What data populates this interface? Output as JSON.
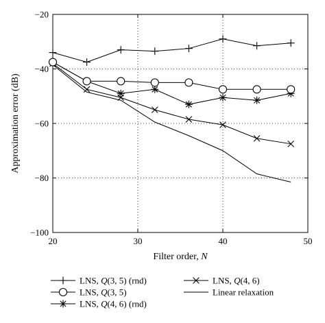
{
  "chart_data": {
    "type": "line",
    "title": "",
    "xlabel": "Filter order, N",
    "ylabel": "Approximation error (dB)",
    "xlim": [
      20,
      50
    ],
    "ylim": [
      -100,
      -20
    ],
    "x_ticks": [
      20,
      30,
      40,
      50
    ],
    "y_ticks": [
      -20,
      -40,
      -60,
      -80,
      -100
    ],
    "grid": true,
    "legend_position": "below",
    "series": [
      {
        "name": "LNS, Q(3, 5) (rnd)",
        "marker": "plus",
        "x": [
          20,
          24,
          28,
          32,
          36,
          40,
          44,
          48
        ],
        "y": [
          -34,
          -37.5,
          -33,
          -33.5,
          -32.5,
          -29,
          -31.5,
          -30.5
        ]
      },
      {
        "name": "LNS, Q(3, 5)",
        "marker": "circle",
        "x": [
          20,
          24,
          28,
          32,
          36,
          40,
          44,
          48
        ],
        "y": [
          -37.5,
          -44.5,
          -44.5,
          -45,
          -45,
          -47.5,
          -47.5,
          -47.5
        ]
      },
      {
        "name": "LNS, Q(4, 6) (rnd)",
        "marker": "star",
        "x": [
          20,
          24,
          28,
          32,
          36,
          40,
          44,
          48
        ],
        "y": [
          -37.5,
          -44.5,
          -49,
          -47.5,
          -53,
          -50.5,
          -51.5,
          -49
        ]
      },
      {
        "name": "LNS, Q(4, 6)",
        "marker": "x",
        "x": [
          20,
          24,
          28,
          32,
          36,
          40,
          44,
          48
        ],
        "y": [
          -38,
          -47.5,
          -50.5,
          -55,
          -58.5,
          -60.5,
          -65.5,
          -67.5
        ]
      },
      {
        "name": "Linear relaxation",
        "marker": "none",
        "x": [
          20,
          24,
          28,
          32,
          36,
          40,
          44,
          48
        ],
        "y": [
          -38.5,
          -48.5,
          -51.5,
          -59.5,
          -64.5,
          -70,
          -78.5,
          -81.5
        ]
      }
    ]
  },
  "legend": {
    "items": [
      {
        "prefix": "LNS, ",
        "q": "Q",
        "args": "(3, 5) (rnd)",
        "marker": "plus"
      },
      {
        "prefix": "LNS, ",
        "q": "Q",
        "args": "(4, 6)",
        "marker": "x"
      },
      {
        "prefix": "LNS, ",
        "q": "Q",
        "args": "(3, 5)",
        "marker": "circle"
      },
      {
        "prefix": "Linear relaxation",
        "q": "",
        "args": "",
        "marker": "none"
      },
      {
        "prefix": "LNS, ",
        "q": "Q",
        "args": "(4, 6) (rnd)",
        "marker": "star"
      }
    ]
  },
  "axis_text": {
    "x_label_main": "Filter order, ",
    "x_label_var": "N",
    "y_label": "Approximation error (dB)"
  }
}
